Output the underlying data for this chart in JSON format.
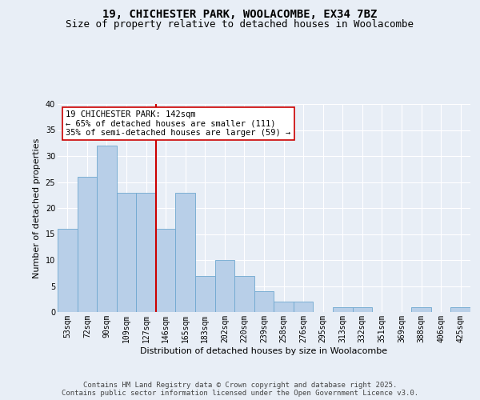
{
  "title1": "19, CHICHESTER PARK, WOOLACOMBE, EX34 7BZ",
  "title2": "Size of property relative to detached houses in Woolacombe",
  "xlabel": "Distribution of detached houses by size in Woolacombe",
  "ylabel": "Number of detached properties",
  "footnote1": "Contains HM Land Registry data © Crown copyright and database right 2025.",
  "footnote2": "Contains public sector information licensed under the Open Government Licence v3.0.",
  "bins": [
    "53sqm",
    "72sqm",
    "90sqm",
    "109sqm",
    "127sqm",
    "146sqm",
    "165sqm",
    "183sqm",
    "202sqm",
    "220sqm",
    "239sqm",
    "258sqm",
    "276sqm",
    "295sqm",
    "313sqm",
    "332sqm",
    "351sqm",
    "369sqm",
    "388sqm",
    "406sqm",
    "425sqm"
  ],
  "values": [
    16,
    26,
    32,
    23,
    23,
    16,
    23,
    7,
    10,
    7,
    4,
    2,
    2,
    0,
    1,
    1,
    0,
    0,
    1,
    0,
    1
  ],
  "bar_color": "#b8cfe8",
  "bar_edgecolor": "#6fa8d0",
  "redline_bin_index": 5,
  "redline_label": "19 CHICHESTER PARK: 142sqm",
  "redline_text2": "← 65% of detached houses are smaller (111)",
  "redline_text3": "35% of semi-detached houses are larger (59) →",
  "redline_color": "#cc0000",
  "ylim": [
    0,
    40
  ],
  "yticks": [
    0,
    5,
    10,
    15,
    20,
    25,
    30,
    35,
    40
  ],
  "bg_color": "#e8eef6",
  "plot_bg_color": "#e8eef6",
  "grid_color": "#ffffff",
  "title_fontsize": 10,
  "subtitle_fontsize": 9,
  "axis_label_fontsize": 8,
  "tick_fontsize": 7,
  "annotation_fontsize": 7.5,
  "footnote_fontsize": 6.5
}
